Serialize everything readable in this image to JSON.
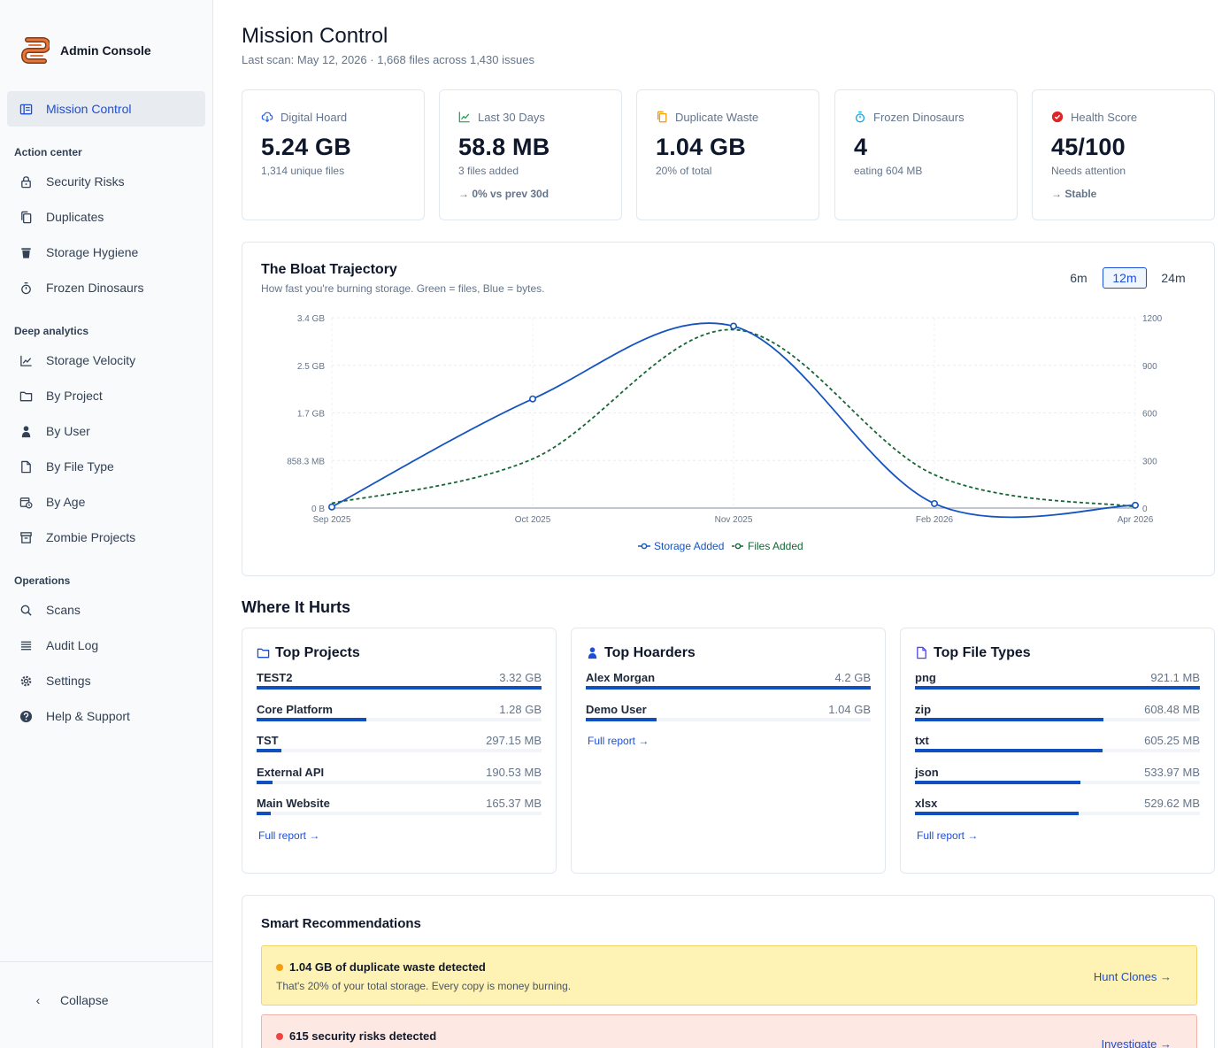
{
  "app": {
    "title": "Admin Console"
  },
  "sidebar": {
    "main_item": {
      "label": "Mission Control",
      "icon": "dashboard-icon"
    },
    "sections": [
      {
        "label": "Action center",
        "items": [
          {
            "label": "Security Risks",
            "icon": "lock-icon"
          },
          {
            "label": "Duplicates",
            "icon": "copy-icon"
          },
          {
            "label": "Storage Hygiene",
            "icon": "trash-icon"
          },
          {
            "label": "Frozen Dinosaurs",
            "icon": "stopwatch-icon"
          }
        ]
      },
      {
        "label": "Deep analytics",
        "items": [
          {
            "label": "Storage Velocity",
            "icon": "line-chart-icon"
          },
          {
            "label": "By Project",
            "icon": "folder-icon"
          },
          {
            "label": "By User",
            "icon": "user-icon"
          },
          {
            "label": "By File Type",
            "icon": "file-icon"
          },
          {
            "label": "By Age",
            "icon": "calendar-clock-icon"
          },
          {
            "label": "Zombie Projects",
            "icon": "archive-icon"
          }
        ]
      },
      {
        "label": "Operations",
        "items": [
          {
            "label": "Scans",
            "icon": "search-icon"
          },
          {
            "label": "Audit Log",
            "icon": "list-icon"
          },
          {
            "label": "Settings",
            "icon": "gear-icon"
          },
          {
            "label": "Help & Support",
            "icon": "help-icon"
          }
        ]
      }
    ],
    "collapse_label": "Collapse"
  },
  "header": {
    "title": "Mission Control",
    "subtitle": "Last scan: May 12, 2026 · 1,668 files across 1,430 issues"
  },
  "stats": [
    {
      "label": "Digital Hoard",
      "value": "5.24 GB",
      "sub": "1,314 unique files",
      "delta": "",
      "icon": "cloud-download-icon",
      "icon_color": "#2563eb"
    },
    {
      "label": "Last 30 Days",
      "value": "58.8 MB",
      "sub": "3 files added",
      "delta": "→ 0% vs prev 30d",
      "icon": "trend-up-icon",
      "icon_color": "#16a34a"
    },
    {
      "label": "Duplicate Waste",
      "value": "1.04 GB",
      "sub": "20% of total",
      "delta": "",
      "icon": "copy-icon",
      "icon_color": "#f59e0b"
    },
    {
      "label": "Frozen Dinosaurs",
      "value": "4",
      "sub": "eating 604 MB",
      "delta": "",
      "icon": "stopwatch-icon",
      "icon_color": "#0ea5e9"
    },
    {
      "label": "Health Score",
      "value": "45/100",
      "sub": "Needs attention",
      "delta": "→ Stable",
      "icon": "alert-circle-icon",
      "icon_color": "#dc2626"
    }
  ],
  "chart": {
    "title": "The Bloat Trajectory",
    "subtitle": "How fast you're burning storage. Green = files, Blue = bytes.",
    "ranges": [
      "6m",
      "12m",
      "24m"
    ],
    "active_range": "12m"
  },
  "chart_data": {
    "type": "line",
    "x": [
      "Sep 2025",
      "Oct 2025",
      "Nov 2025",
      "Feb 2026",
      "Apr 2026"
    ],
    "y_left_ticks": [
      "0 B",
      "858.3 MB",
      "1.7 GB",
      "2.5 GB",
      "3.4 GB"
    ],
    "y_right_ticks": [
      "0",
      "300",
      "600",
      "900",
      "1200"
    ],
    "ylim_left_gb": [
      0,
      3.4
    ],
    "ylim_right": [
      0,
      1200
    ],
    "series": [
      {
        "name": "Storage Added",
        "axis": "left",
        "unit": "GB",
        "values": [
          0.02,
          1.95,
          3.25,
          0.08,
          0.05
        ],
        "color": "#1554c0",
        "style": "solid"
      },
      {
        "name": "Files Added",
        "axis": "right",
        "unit": "files",
        "values": [
          30,
          310,
          1125,
          210,
          8
        ],
        "color": "#166534",
        "style": "dashed"
      }
    ],
    "legend": "bottom-center",
    "grid": true
  },
  "where_it_hurts": {
    "title": "Where It Hurts",
    "full_report_label": "Full report →",
    "cards": [
      {
        "title": "Top Projects",
        "icon": "folder-icon",
        "items": [
          {
            "name": "TEST2",
            "size": "3.32 GB",
            "pct": 100
          },
          {
            "name": "Core Platform",
            "size": "1.28 GB",
            "pct": 38.5
          },
          {
            "name": "TST",
            "size": "297.15 MB",
            "pct": 8.7
          },
          {
            "name": "External API",
            "size": "190.53 MB",
            "pct": 5.6
          },
          {
            "name": "Main Website",
            "size": "165.37 MB",
            "pct": 4.9
          }
        ]
      },
      {
        "title": "Top Hoarders",
        "icon": "user-icon",
        "items": [
          {
            "name": "Alex Morgan",
            "size": "4.2 GB",
            "pct": 100
          },
          {
            "name": "Demo User",
            "size": "1.04 GB",
            "pct": 24.8
          }
        ]
      },
      {
        "title": "Top File Types",
        "icon": "file-icon",
        "items": [
          {
            "name": "png",
            "size": "921.1 MB",
            "pct": 100
          },
          {
            "name": "zip",
            "size": "608.48 MB",
            "pct": 66
          },
          {
            "name": "txt",
            "size": "605.25 MB",
            "pct": 65.7
          },
          {
            "name": "json",
            "size": "533.97 MB",
            "pct": 58
          },
          {
            "name": "xlsx",
            "size": "529.62 MB",
            "pct": 57.5
          }
        ]
      }
    ]
  },
  "recommendations": {
    "title": "Smart Recommendations",
    "items": [
      {
        "headline": "1.04 GB of duplicate waste detected",
        "body": "That's 20% of your total storage. Every copy is money burning.",
        "action": "Hunt Clones →",
        "dot_color": "#f59e0b"
      },
      {
        "headline": "615 security risks detected",
        "body": "",
        "action": "Investigate →",
        "dot_color": "#ef4444"
      }
    ]
  }
}
